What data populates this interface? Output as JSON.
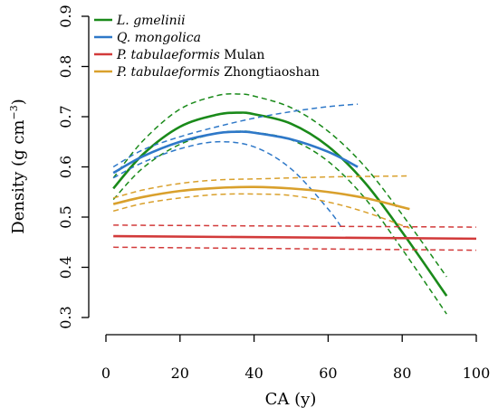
{
  "chart_data": {
    "type": "line",
    "xlabel": "CA (y)",
    "ylabel": "Density (g cm",
    "ylabel_superscript": "−3",
    "ylabel_close": ")",
    "xlim": [
      0,
      100
    ],
    "ylim": [
      0.3,
      0.9
    ],
    "x_ticks": [
      "0",
      "20",
      "40",
      "60",
      "80",
      "100"
    ],
    "y_ticks": [
      "0.3",
      "0.4",
      "0.5",
      "0.6",
      "0.7",
      "0.8",
      "0.9"
    ],
    "grid": false,
    "legend_position": "top-left",
    "series": [
      {
        "name": "L. gmelinii",
        "name_italic": "L. gmelinii",
        "name_rest": "",
        "color": "#1a8a1a",
        "fit": {
          "x": [
            2,
            10,
            20,
            30,
            36,
            40,
            50,
            60,
            70,
            80,
            92
          ],
          "y": [
            0.557,
            0.625,
            0.68,
            0.704,
            0.708,
            0.705,
            0.686,
            0.641,
            0.568,
            0.47,
            0.343
          ]
        },
        "ci_upper": {
          "x": [
            2,
            10,
            20,
            30,
            36,
            40,
            50,
            60,
            70,
            80,
            92
          ],
          "y": [
            0.578,
            0.652,
            0.715,
            0.742,
            0.745,
            0.741,
            0.718,
            0.671,
            0.6,
            0.505,
            0.381
          ]
        },
        "ci_lower": {
          "x": [
            2,
            10,
            20,
            30,
            36,
            40,
            50,
            60,
            70,
            80,
            92
          ],
          "y": [
            0.535,
            0.598,
            0.645,
            0.667,
            0.671,
            0.669,
            0.654,
            0.611,
            0.537,
            0.436,
            0.307
          ]
        }
      },
      {
        "name": "Q. mongolica",
        "name_italic": "Q. mongolica",
        "name_rest": "",
        "color": "#2e78c8",
        "fit": {
          "x": [
            2,
            10,
            20,
            30,
            36,
            40,
            50,
            60,
            68
          ],
          "y": [
            0.588,
            0.621,
            0.65,
            0.667,
            0.67,
            0.668,
            0.655,
            0.63,
            0.6
          ]
        },
        "ci_upper": {
          "x": [
            2,
            10,
            20,
            30,
            40,
            50,
            60,
            68
          ],
          "y": [
            0.6,
            0.634,
            0.66,
            0.68,
            0.697,
            0.71,
            0.72,
            0.725
          ]
        },
        "ci_lower": {
          "x": [
            2,
            10,
            20,
            30,
            40,
            50,
            60,
            64
          ],
          "y": [
            0.578,
            0.609,
            0.636,
            0.65,
            0.64,
            0.596,
            0.516,
            0.475
          ]
        }
      },
      {
        "name": "P. tabulaeformis Mulan",
        "name_italic": "P. tabulaeformis",
        "name_rest": " Mulan",
        "color": "#d23a3a",
        "fit": {
          "x": [
            2,
            100
          ],
          "y": [
            0.462,
            0.457
          ]
        },
        "ci_upper": {
          "x": [
            2,
            100
          ],
          "y": [
            0.484,
            0.48
          ]
        },
        "ci_lower": {
          "x": [
            2,
            100
          ],
          "y": [
            0.44,
            0.434
          ]
        }
      },
      {
        "name": "P. tabulaeformis Zhongtiaoshan",
        "name_italic": "P. tabulaeformis",
        "name_rest": " Zhongtiaoshan",
        "color": "#d9a02c",
        "fit": {
          "x": [
            2,
            10,
            20,
            30,
            40,
            50,
            60,
            70,
            82
          ],
          "y": [
            0.526,
            0.54,
            0.552,
            0.558,
            0.56,
            0.557,
            0.55,
            0.538,
            0.516
          ]
        },
        "ci_upper": {
          "x": [
            2,
            10,
            20,
            30,
            40,
            50,
            60,
            70,
            82
          ],
          "y": [
            0.538,
            0.554,
            0.567,
            0.574,
            0.576,
            0.578,
            0.58,
            0.581,
            0.582
          ]
        },
        "ci_lower": {
          "x": [
            2,
            10,
            20,
            30,
            40,
            50,
            60,
            70,
            82
          ],
          "y": [
            0.512,
            0.527,
            0.538,
            0.545,
            0.546,
            0.543,
            0.53,
            0.51,
            0.478
          ]
        }
      }
    ]
  }
}
